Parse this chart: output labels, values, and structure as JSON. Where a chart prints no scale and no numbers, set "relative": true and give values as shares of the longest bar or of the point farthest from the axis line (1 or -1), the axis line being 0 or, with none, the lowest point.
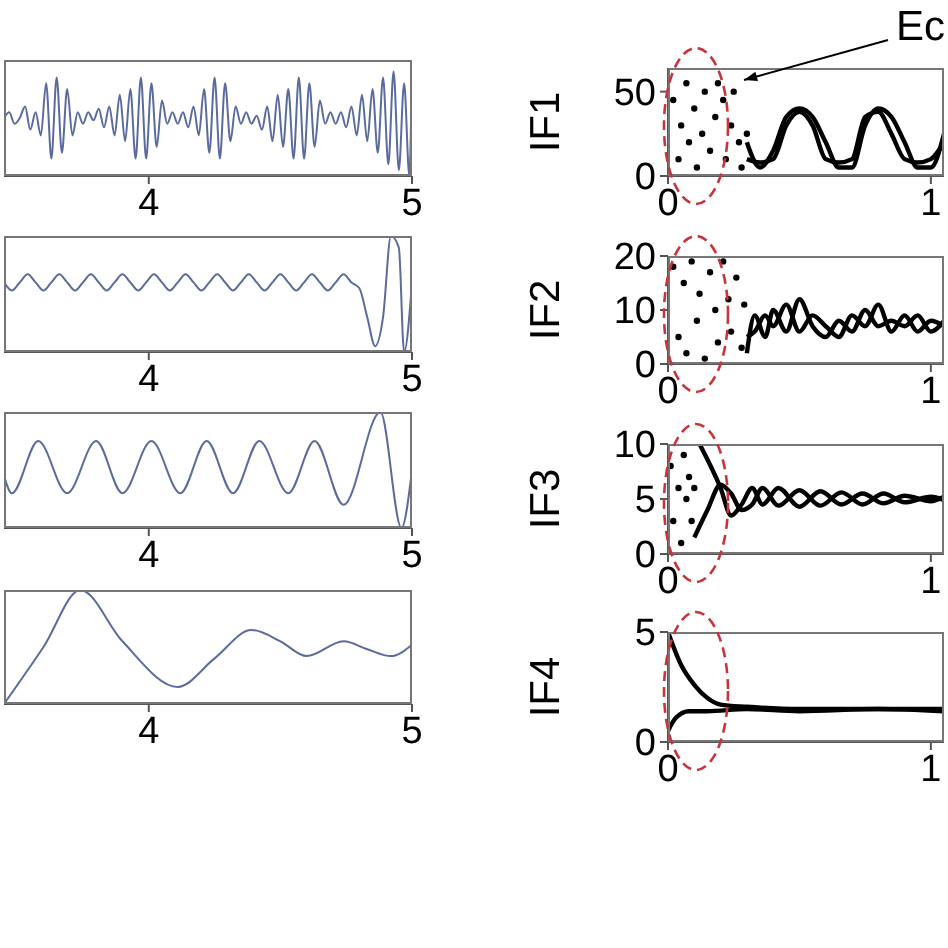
{
  "chart_data": [
    {
      "type": "line",
      "relative": true,
      "tick_labels": "x",
      "xlim": [
        3.45,
        5
      ],
      "xticks": [
        4,
        5
      ],
      "x": [
        3.45,
        3.47,
        3.49,
        3.51,
        3.53,
        3.55,
        3.57,
        3.59,
        3.61,
        3.63,
        3.65,
        3.67,
        3.69,
        3.71,
        3.73,
        3.75,
        3.77,
        3.79,
        3.81,
        3.83,
        3.85,
        3.87,
        3.89,
        3.91,
        3.93,
        3.95,
        3.97,
        3.99,
        4.01,
        4.03,
        4.05,
        4.07,
        4.09,
        4.11,
        4.13,
        4.15,
        4.17,
        4.19,
        4.21,
        4.23,
        4.25,
        4.27,
        4.29,
        4.31,
        4.33,
        4.35,
        4.37,
        4.39,
        4.41,
        4.43,
        4.45,
        4.47,
        4.49,
        4.51,
        4.53,
        4.55,
        4.57,
        4.59,
        4.61,
        4.63,
        4.65,
        4.67,
        4.69,
        4.71,
        4.73,
        4.75,
        4.77,
        4.79,
        4.81,
        4.83,
        4.85,
        4.87,
        4.89,
        4.91,
        4.93,
        4.95,
        4.97,
        4.99,
        5.0
      ],
      "series": [
        {
          "color": "#5b6b9e",
          "values": [
            0.5,
            0.55,
            0.45,
            0.5,
            0.6,
            0.4,
            0.55,
            0.35,
            0.8,
            0.15,
            0.85,
            0.2,
            0.75,
            0.35,
            0.55,
            0.45,
            0.55,
            0.48,
            0.58,
            0.42,
            0.6,
            0.35,
            0.7,
            0.3,
            0.75,
            0.15,
            0.85,
            0.15,
            0.8,
            0.25,
            0.65,
            0.45,
            0.55,
            0.45,
            0.55,
            0.42,
            0.6,
            0.35,
            0.75,
            0.2,
            0.85,
            0.15,
            0.8,
            0.3,
            0.6,
            0.45,
            0.55,
            0.45,
            0.52,
            0.4,
            0.6,
            0.3,
            0.7,
            0.25,
            0.75,
            0.15,
            0.85,
            0.15,
            0.8,
            0.25,
            0.65,
            0.45,
            0.55,
            0.45,
            0.55,
            0.42,
            0.6,
            0.35,
            0.7,
            0.3,
            0.75,
            0.2,
            0.85,
            0.1,
            0.9,
            0.05,
            0.8,
            0.0,
            1.0
          ]
        }
      ]
    },
    {
      "type": "line",
      "relative": true,
      "tick_labels": "x",
      "xlim": [
        3.45,
        5
      ],
      "xticks": [
        4,
        5
      ],
      "x": [
        3.45,
        3.48,
        3.51,
        3.54,
        3.57,
        3.6,
        3.63,
        3.66,
        3.69,
        3.72,
        3.75,
        3.78,
        3.81,
        3.84,
        3.87,
        3.9,
        3.93,
        3.96,
        3.99,
        4.02,
        4.05,
        4.08,
        4.11,
        4.14,
        4.17,
        4.2,
        4.23,
        4.26,
        4.29,
        4.32,
        4.35,
        4.38,
        4.41,
        4.44,
        4.47,
        4.5,
        4.53,
        4.56,
        4.59,
        4.62,
        4.65,
        4.68,
        4.71,
        4.74,
        4.77,
        4.8,
        4.83,
        4.86,
        4.89,
        4.92,
        4.95,
        4.97,
        5.0
      ],
      "series": [
        {
          "color": "#5b6b9e",
          "values": [
            0.6,
            0.53,
            0.6,
            0.67,
            0.6,
            0.53,
            0.6,
            0.67,
            0.6,
            0.53,
            0.6,
            0.67,
            0.6,
            0.53,
            0.6,
            0.67,
            0.6,
            0.53,
            0.6,
            0.67,
            0.6,
            0.53,
            0.6,
            0.67,
            0.6,
            0.53,
            0.6,
            0.67,
            0.6,
            0.53,
            0.6,
            0.67,
            0.6,
            0.53,
            0.6,
            0.67,
            0.6,
            0.53,
            0.6,
            0.67,
            0.6,
            0.53,
            0.6,
            0.67,
            0.6,
            0.55,
            0.3,
            0.05,
            0.3,
            1.0,
            0.9,
            0.0,
            0.6
          ]
        }
      ]
    },
    {
      "type": "line",
      "relative": true,
      "tick_labels": "x",
      "xlim": [
        3.45,
        5
      ],
      "xticks": [
        4,
        5
      ],
      "x": [
        3.45,
        3.48,
        3.58,
        3.69,
        3.8,
        3.9,
        4.01,
        4.12,
        4.22,
        4.32,
        4.42,
        4.53,
        4.63,
        4.74,
        4.88,
        4.96,
        5.0
      ],
      "series": [
        {
          "color": "#5b6b9e",
          "values": [
            0.45,
            0.3,
            0.75,
            0.3,
            0.75,
            0.3,
            0.75,
            0.3,
            0.75,
            0.3,
            0.75,
            0.3,
            0.75,
            0.2,
            1.0,
            0.0,
            0.5
          ]
        }
      ]
    },
    {
      "type": "line",
      "relative": true,
      "tick_labels": "x",
      "xlim": [
        3.45,
        5
      ],
      "xticks": [
        4,
        5
      ],
      "x": [
        3.45,
        3.6,
        3.74,
        3.9,
        4.11,
        4.25,
        4.39,
        4.5,
        4.6,
        4.74,
        4.83,
        4.92,
        5.0
      ],
      "series": [
        {
          "color": "#5b6b9e",
          "values": [
            0.0,
            0.5,
            1.0,
            0.55,
            0.15,
            0.4,
            0.65,
            0.55,
            0.42,
            0.55,
            0.48,
            0.42,
            0.52
          ]
        }
      ]
    },
    {
      "type": "line",
      "ylabel": "IF1",
      "xlim": [
        0,
        1.05
      ],
      "xticks": [
        0,
        1
      ],
      "ylim": [
        0,
        64
      ],
      "yticks": [
        0,
        50
      ],
      "annotations": [
        "Ec"
      ],
      "series": [
        {
          "type": "scatter",
          "color": "#000000",
          "x": [
            0.02,
            0.04,
            0.05,
            0.07,
            0.08,
            0.1,
            0.11,
            0.13,
            0.14,
            0.16,
            0.18,
            0.19,
            0.21,
            0.22,
            0.24,
            0.25,
            0.27,
            0.28,
            0.3
          ],
          "values": [
            45,
            10,
            30,
            55,
            20,
            40,
            5,
            25,
            50,
            15,
            35,
            55,
            45,
            10,
            30,
            50,
            20,
            5,
            25
          ]
        },
        {
          "color": "#000000",
          "x": [
            0.3,
            0.35,
            0.4,
            0.45,
            0.5,
            0.55,
            0.6,
            0.65,
            0.7,
            0.75,
            0.8,
            0.85,
            0.9,
            0.95,
            1.0,
            1.05
          ],
          "values": [
            20,
            5,
            15,
            35,
            40,
            35,
            20,
            5,
            5,
            30,
            40,
            35,
            20,
            5,
            5,
            25
          ]
        },
        {
          "color": "#000000",
          "x": [
            0.3,
            0.35,
            0.4,
            0.45,
            0.5,
            0.55,
            0.6,
            0.65,
            0.7,
            0.75,
            0.8,
            0.85,
            0.9,
            0.95,
            1.0,
            1.05
          ],
          "values": [
            10,
            8,
            10,
            30,
            38,
            30,
            10,
            8,
            10,
            35,
            38,
            25,
            10,
            8,
            10,
            20
          ]
        }
      ]
    },
    {
      "type": "line",
      "ylabel": "IF2",
      "xlim": [
        0,
        1.05
      ],
      "xticks": [
        0,
        1
      ],
      "ylim": [
        0,
        20
      ],
      "yticks": [
        0,
        10,
        20
      ],
      "series": [
        {
          "type": "scatter",
          "color": "#000000",
          "x": [
            0.02,
            0.04,
            0.06,
            0.07,
            0.09,
            0.11,
            0.12,
            0.14,
            0.16,
            0.18,
            0.19,
            0.21,
            0.23,
            0.24,
            0.26,
            0.28,
            0.29
          ],
          "values": [
            18,
            5,
            15,
            2,
            19,
            8,
            13,
            1,
            17,
            10,
            4,
            19,
            12,
            6,
            16,
            3,
            11
          ]
        },
        {
          "color": "#000000",
          "x": [
            0.3,
            0.33,
            0.37,
            0.4,
            0.45,
            0.5,
            0.55,
            0.6,
            0.65,
            0.7,
            0.75,
            0.8,
            0.85,
            0.9,
            0.95,
            1.0,
            1.05
          ],
          "values": [
            2,
            9,
            5,
            10,
            6,
            12,
            7,
            5,
            8,
            6,
            10,
            7,
            8,
            7,
            9,
            6,
            8
          ]
        },
        {
          "color": "#000000",
          "x": [
            0.3,
            0.33,
            0.37,
            0.4,
            0.45,
            0.5,
            0.55,
            0.6,
            0.65,
            0.7,
            0.75,
            0.8,
            0.85,
            0.9,
            0.95,
            1.0,
            1.05
          ],
          "values": [
            5,
            6,
            9,
            7,
            11,
            6,
            9,
            7,
            5,
            9,
            7,
            11,
            6,
            9,
            6,
            8,
            7
          ]
        }
      ]
    },
    {
      "type": "line",
      "ylabel": "IF3",
      "xlim": [
        0,
        1.05
      ],
      "xticks": [
        0,
        1
      ],
      "ylim": [
        0,
        10
      ],
      "yticks": [
        0,
        5,
        10
      ],
      "series": [
        {
          "type": "scatter",
          "color": "#000000",
          "x": [
            0.01,
            0.02,
            0.04,
            0.05,
            0.06,
            0.07,
            0.08,
            0.09,
            0.1
          ],
          "values": [
            8,
            3,
            6,
            1,
            9,
            5,
            7,
            3,
            6
          ]
        },
        {
          "color": "#000000",
          "x": [
            0.12,
            0.2,
            0.24,
            0.28,
            0.32,
            0.36,
            0.42,
            0.5,
            0.58,
            0.66,
            0.74,
            0.82,
            0.9,
            1.0,
            1.05
          ],
          "values": [
            10,
            6,
            3.5,
            4.5,
            6,
            4.5,
            6,
            4.3,
            5.7,
            4.5,
            5.5,
            4.6,
            5.3,
            4.8,
            5.2
          ]
        },
        {
          "color": "#000000",
          "x": [
            0.1,
            0.15,
            0.2,
            0.24,
            0.28,
            0.32,
            0.36,
            0.42,
            0.5,
            0.58,
            0.66,
            0.74,
            0.82,
            0.9,
            1.0,
            1.05
          ],
          "values": [
            1.5,
            4,
            6.3,
            5.5,
            4,
            4.5,
            6,
            4.4,
            5.8,
            4.4,
            5.6,
            4.5,
            5.5,
            4.7,
            5.2,
            4.9
          ]
        }
      ]
    },
    {
      "type": "line",
      "ylabel": "IF4",
      "xlim": [
        0,
        1.05
      ],
      "xticks": [
        0,
        1
      ],
      "ylim": [
        0,
        5
      ],
      "yticks": [
        0,
        5
      ],
      "series": [
        {
          "color": "#000000",
          "x": [
            0,
            0.05,
            0.1,
            0.15,
            0.2,
            0.3,
            0.5,
            0.8,
            1.05
          ],
          "values": [
            5,
            3.5,
            2.6,
            2.0,
            1.7,
            1.6,
            1.5,
            1.5,
            1.5
          ]
        },
        {
          "color": "#000000",
          "x": [
            0,
            0.03,
            0.08,
            0.15,
            0.3,
            0.5,
            0.8,
            1.05
          ],
          "values": [
            0.5,
            1.1,
            1.4,
            1.4,
            1.5,
            1.4,
            1.5,
            1.4
          ]
        }
      ]
    }
  ]
}
